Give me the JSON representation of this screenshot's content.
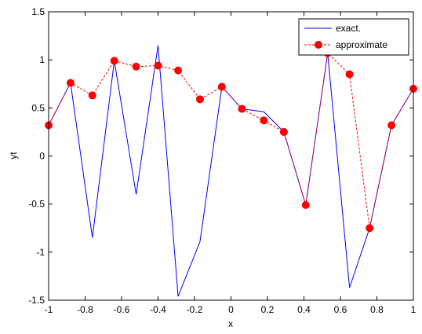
{
  "chart_data": {
    "type": "line",
    "title": "",
    "xlabel": "x",
    "ylabel": "yt",
    "xlim": [
      -1,
      1
    ],
    "ylim": [
      -1.5,
      1.5
    ],
    "xticks": [
      -1,
      -0.8,
      -0.6,
      -0.4,
      -0.2,
      0,
      0.2,
      0.4,
      0.6,
      0.8,
      1
    ],
    "xtick_labels": [
      "-1",
      "-0.8",
      "-0.6",
      "-0.4",
      "-0.2",
      "0",
      "0.2",
      "0.4",
      "0.6",
      "0.8",
      "1"
    ],
    "yticks": [
      -1.5,
      -1,
      -0.5,
      0,
      0.5,
      1,
      1.5
    ],
    "ytick_labels": [
      "-1.5",
      "-1",
      "-0.5",
      "0",
      "0.5",
      "1",
      "1.5"
    ],
    "grid": false,
    "legend_position": "top-right",
    "series": [
      {
        "name": "exact.",
        "color": "#0000ff",
        "style": "solid",
        "marker": "none",
        "x": [
          -1,
          -0.88,
          -0.76,
          -0.64,
          -0.52,
          -0.4,
          -0.29,
          -0.17,
          -0.05,
          0.06,
          0.18,
          0.29,
          0.41,
          0.53,
          0.65,
          0.76,
          0.88,
          1
        ],
        "y": [
          0.32,
          0.76,
          -0.85,
          0.99,
          -0.4,
          1.15,
          -1.46,
          -0.89,
          0.72,
          0.49,
          0.46,
          0.25,
          -0.51,
          1.07,
          -1.37,
          -0.75,
          0.32,
          0.7
        ]
      },
      {
        "name": "approximate",
        "color": "#ff0000",
        "style": "dashed",
        "marker": "circle",
        "x": [
          -1,
          -0.88,
          -0.76,
          -0.64,
          -0.52,
          -0.4,
          -0.29,
          -0.17,
          -0.05,
          0.06,
          0.18,
          0.29,
          0.41,
          0.53,
          0.65,
          0.76,
          0.88,
          1
        ],
        "y": [
          0.32,
          0.76,
          0.63,
          0.99,
          0.93,
          0.94,
          0.89,
          0.59,
          0.72,
          0.49,
          0.37,
          0.25,
          -0.51,
          1.07,
          0.85,
          -0.75,
          0.32,
          0.7
        ]
      }
    ]
  }
}
